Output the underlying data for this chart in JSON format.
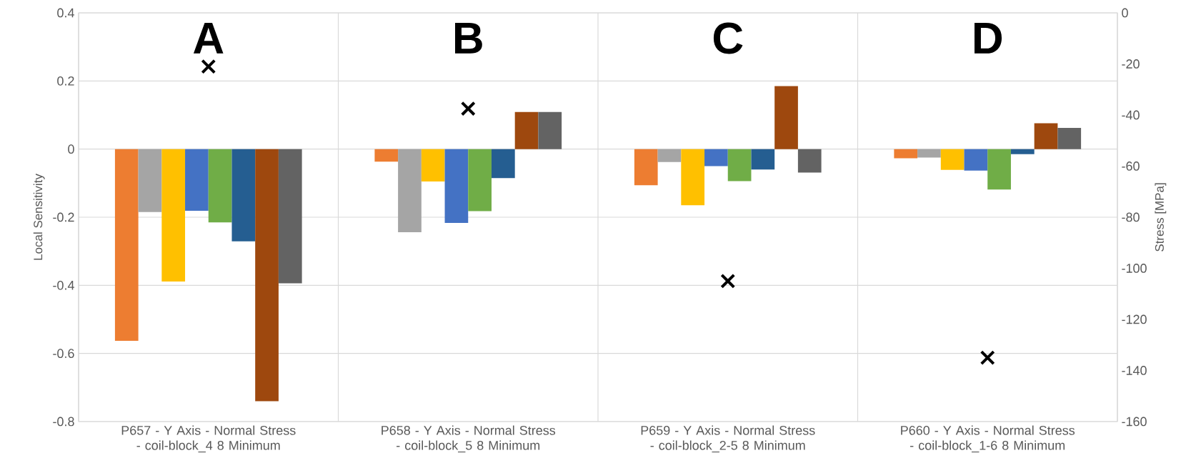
{
  "chart_data": {
    "type": "bar",
    "categories": [
      "P657 - Y Axis - Normal Stress - coil-block_4 8 Minimum",
      "P658 - Y Axis - Normal Stress - coil-block_5 8 Minimum",
      "P659 - Y Axis - Normal Stress - coil-block_2-5 8 Minimum",
      "P660 - Y Axis - Normal Stress - coil-block_1-6 8 Minimum"
    ],
    "series": [
      {
        "color": "#ed7d31",
        "values": [
          -0.563,
          -0.037,
          -0.106,
          -0.027
        ]
      },
      {
        "color": "#a5a5a5",
        "values": [
          -0.185,
          -0.244,
          -0.038,
          -0.025
        ]
      },
      {
        "color": "#ffc000",
        "values": [
          -0.389,
          -0.095,
          -0.165,
          -0.061
        ]
      },
      {
        "color": "#4472c4",
        "values": [
          -0.181,
          -0.217,
          -0.05,
          -0.063
        ]
      },
      {
        "color": "#70ad47",
        "values": [
          -0.215,
          -0.182,
          -0.094,
          -0.119
        ]
      },
      {
        "color": "#255e91",
        "values": [
          -0.271,
          -0.085,
          -0.06,
          -0.015
        ]
      },
      {
        "color": "#9e480e",
        "values": [
          -0.74,
          0.109,
          0.185,
          0.076
        ]
      },
      {
        "color": "#636363",
        "values": [
          -0.394,
          0.109,
          -0.069,
          0.062
        ]
      },
      {
        "type": "scatter",
        "axis": "y2",
        "color": "#000000",
        "marker": "cross",
        "values": [
          -21,
          -37.5,
          -105,
          -135
        ]
      }
    ],
    "ylim": [
      -0.8,
      0.4
    ],
    "yticks": [
      -0.8,
      -0.6,
      -0.4,
      -0.2,
      0,
      0.2,
      0.4
    ],
    "y2lim": [
      -160,
      0
    ],
    "y2ticks": [
      -160,
      -140,
      -120,
      -100,
      -80,
      -60,
      -40,
      -20,
      0
    ],
    "ylabel": "Local Sensitivity",
    "y2label": "Stress [MPa]",
    "annotations": [
      "A",
      "B",
      "C",
      "D"
    ],
    "grid": true
  }
}
